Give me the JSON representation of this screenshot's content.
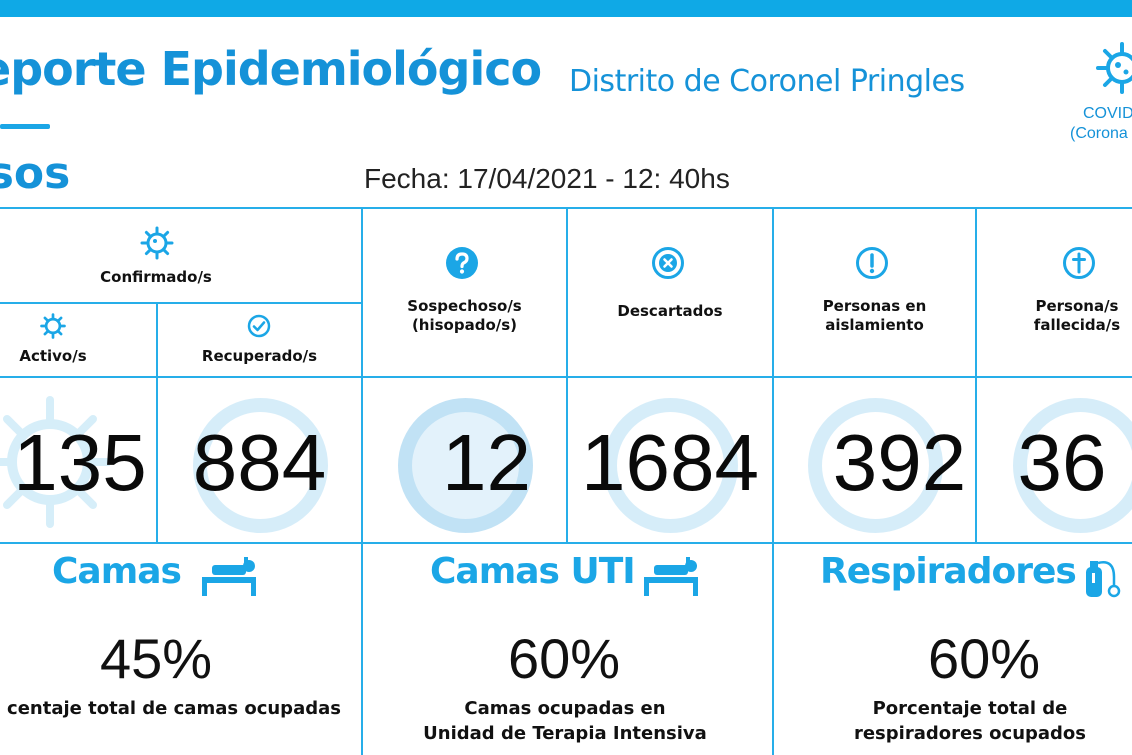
{
  "header": {
    "title": "eporte Epidemiológico",
    "subtitle": "Distrito de Coronel Pringles",
    "section": "asos",
    "date": "Fecha: 17/04/2021 - 12: 40hs",
    "covid_label_1": "COVID",
    "covid_label_2": "(Corona"
  },
  "colors": {
    "accent": "#1ba6e6",
    "title": "#1592d8",
    "grid": "#26aee9"
  },
  "table": {
    "confirmed_header": "Confirmado/s",
    "active_header": "Activo/s",
    "recovered_header": "Recuperado/s",
    "suspect_header_1": "Sospechoso/s",
    "suspect_header_2": "(hisopado/s)",
    "discarded_header": "Descartados",
    "isolation_header_1": "Personas en",
    "isolation_header_2": "aislamiento",
    "deceased_header_1": "Persona/s",
    "deceased_header_2": "fallecida/s",
    "active_value": "135",
    "recovered_value": "884",
    "suspect_value": "12",
    "discarded_value": "1684",
    "isolation_value": "392",
    "deceased_value": "36",
    "icons": [
      "virus-icon",
      "virus-icon",
      "check-circle-icon",
      "question-circle-icon",
      "x-circle-icon",
      "exclamation-circle-icon",
      "cross-circle-icon"
    ]
  },
  "resources": {
    "beds_title": "Camas",
    "beds_pct": "45%",
    "beds_caption_1": "centaje total de camas ocupadas",
    "icu_title": "Camas UTI",
    "icu_pct": "60%",
    "icu_caption_1": "Camas ocupadas en",
    "icu_caption_2": "Unidad de Terapia Intensiva",
    "resp_title": "Respiradores",
    "resp_pct": "60%",
    "resp_caption_1": "Porcentaje total de",
    "resp_caption_2": "respiradores ocupados",
    "icons": [
      "bed-icon",
      "bed-icon",
      "oxygen-icon"
    ]
  }
}
